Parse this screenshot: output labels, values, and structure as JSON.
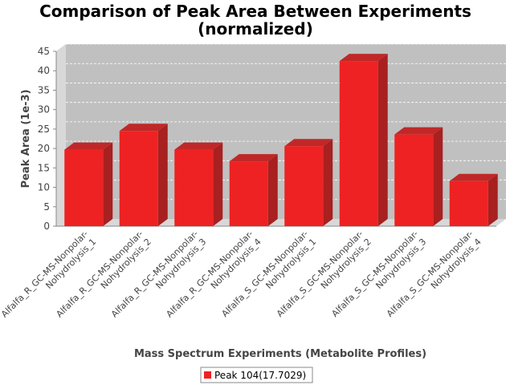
{
  "chart_data": {
    "type": "bar",
    "title_lines": [
      "Comparison of Peak Area Between Experiments",
      "(normalized)"
    ],
    "xlabel": "Mass Spectrum Experiments (Metabolite Profiles)",
    "ylabel": "Peak Area (1e-3)",
    "ylim": [
      0,
      45
    ],
    "yticks": [
      0,
      5,
      10,
      15,
      20,
      25,
      30,
      35,
      40,
      45
    ],
    "grid": true,
    "legend_position": "bottom",
    "categories": [
      [
        "Alfalfa_R_GC-MS-Nonpolar-",
        "Nohydrolysis_1"
      ],
      [
        "Alfalfa_R_GC-MS-Nonpolar-",
        "Nohydrolysis_2"
      ],
      [
        "Alfalfa_R_GC-MS-Nonpolar-",
        "Nohydrolysis_3"
      ],
      [
        "Alfalfa_R_GC-MS-Nonpolar-",
        "Nohydrolysis_4"
      ],
      [
        "Alfalfa_S_GC-MS-Nonpolar-",
        "Nohydrolysis_1"
      ],
      [
        "Alfalfa_S_GC-MS-Nonpolar-",
        "Nohydrolysis_2"
      ],
      [
        "Alfalfa_S_GC-MS-Nonpolar-",
        "Nohydrolysis_3"
      ],
      [
        "Alfalfa_S_GC-MS-Nonpolar-",
        "Nohydrolysis_4"
      ]
    ],
    "series": [
      {
        "name": "Peak 104(17.7029)",
        "color": "#ee2222",
        "values": [
          19.7,
          24.5,
          19.7,
          16.7,
          20.6,
          42.5,
          23.6,
          11.6
        ]
      }
    ]
  }
}
